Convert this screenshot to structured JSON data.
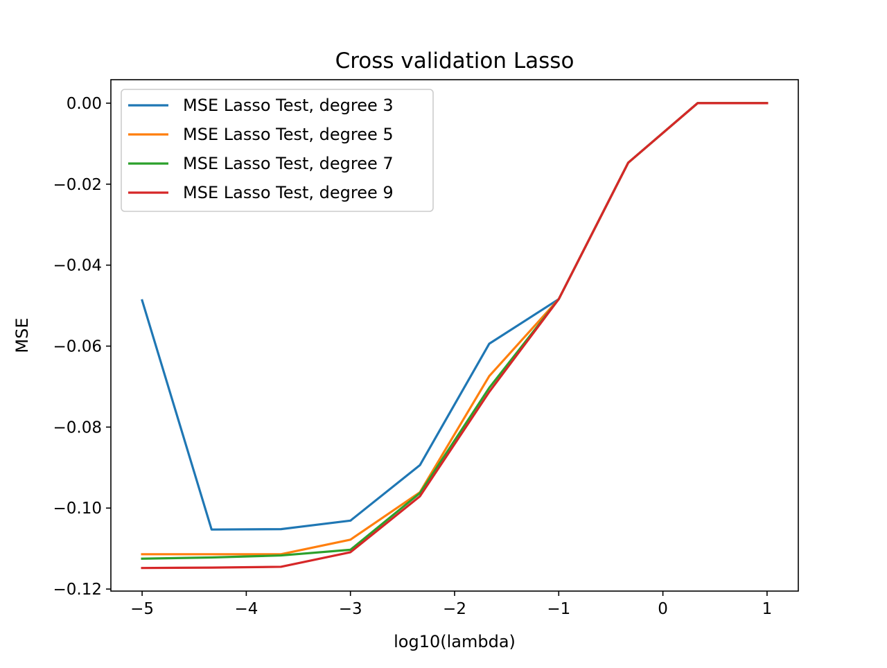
{
  "chart_data": {
    "type": "line",
    "title": "Cross validation Lasso",
    "xlabel": "log10(lambda)",
    "ylabel": "MSE",
    "xlim": [
      -5.3,
      1.3
    ],
    "ylim": [
      -0.1205,
      0.0058
    ],
    "x_ticks": [
      -5,
      -4,
      -3,
      -2,
      -1,
      0,
      1
    ],
    "x_tick_labels": [
      "−5",
      "−4",
      "−3",
      "−2",
      "−1",
      "0",
      "1"
    ],
    "y_ticks": [
      0.0,
      -0.02,
      -0.04,
      -0.06,
      -0.08,
      -0.1,
      -0.12
    ],
    "y_tick_labels": [
      "0.00",
      "−0.02",
      "−0.04",
      "−0.06",
      "−0.08",
      "−0.10",
      "−0.12"
    ],
    "grid": false,
    "legend_position": "upper-left",
    "x": [
      -5.0,
      -4.333,
      -3.667,
      -3.0,
      -2.333,
      -1.667,
      -1.0,
      -0.333,
      0.333,
      1.0
    ],
    "series": [
      {
        "name": "MSE Lasso Test, degree 3",
        "color": "#1f77b4",
        "values": [
          -0.0487,
          -0.1053,
          -0.1052,
          -0.1031,
          -0.0894,
          -0.0594,
          -0.0484,
          -0.0147,
          0.0,
          0.0
        ]
      },
      {
        "name": "MSE Lasso Test, degree 5",
        "color": "#ff7f0e",
        "values": [
          -0.1114,
          -0.1114,
          -0.1114,
          -0.1078,
          -0.0961,
          -0.0674,
          -0.0484,
          -0.0147,
          0.0,
          0.0
        ]
      },
      {
        "name": "MSE Lasso Test, degree 7",
        "color": "#2ca02c",
        "values": [
          -0.1125,
          -0.1122,
          -0.1117,
          -0.1103,
          -0.0963,
          -0.0703,
          -0.0484,
          -0.0147,
          0.0,
          0.0
        ]
      },
      {
        "name": "MSE Lasso Test, degree 9",
        "color": "#d62728",
        "values": [
          -0.1148,
          -0.1147,
          -0.1145,
          -0.1109,
          -0.0971,
          -0.0713,
          -0.0484,
          -0.0147,
          0.0,
          0.0
        ]
      }
    ]
  }
}
